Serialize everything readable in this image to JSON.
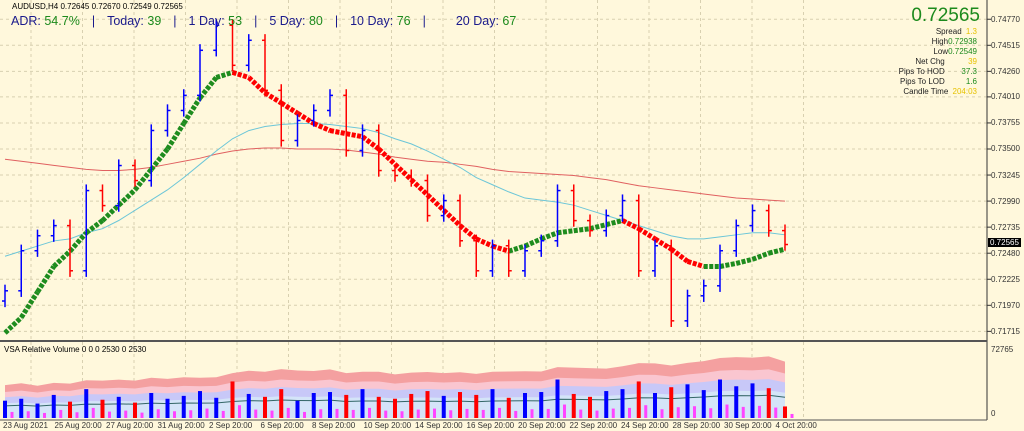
{
  "header": {
    "symbol_line": "AUDUSD,H4  0.72645 0.72670 0.72549 0.72565",
    "adr": {
      "label": "ADR:",
      "value": "54.7%"
    },
    "today": {
      "label": "Today:",
      "value": "39"
    },
    "day1": {
      "label": "1 Day:",
      "value": "53"
    },
    "day5": {
      "label": "5 Day:",
      "value": "80"
    },
    "day10": {
      "label": "10 Day:",
      "value": "76"
    },
    "day20": {
      "label": "20 Day:",
      "value": "67"
    },
    "separator": "|"
  },
  "info_panel": {
    "price": "0.72565",
    "spread_label": "Spread",
    "spread": "1.3",
    "high_label": "High",
    "high": "0.72938",
    "low_label": "Low",
    "low": "0.72549",
    "netchg_label": "Net Chg",
    "netchg": "39",
    "hod_label": "Pips To HOD",
    "hod": "37.3",
    "lod_label": "Pips To LOD",
    "lod": "1.6",
    "candle_label": "Candle Time",
    "candle": "204:03"
  },
  "colors": {
    "background": "#fff8dc",
    "bull": "#0000ff",
    "bear": "#ff0000",
    "ma_up": "#1e8c1e",
    "ma_down": "#ff0000",
    "slow_ma": "#e06060",
    "mid_ma": "#6cc6d8"
  },
  "chart_data": {
    "type": "candlestick",
    "symbol": "AUDUSD",
    "timeframe": "H4",
    "y_ticks": [
      "0.74770",
      "0.74515",
      "0.74260",
      "0.74010",
      "0.73755",
      "0.73500",
      "0.73245",
      "0.72990",
      "0.72735",
      "0.72480",
      "0.72225",
      "0.71970",
      "0.71715"
    ],
    "ylim": [
      0.7165,
      0.7488
    ],
    "current_price": "0.72565",
    "x_ticks": [
      "23 Aug 2021",
      "25 Aug 20:00",
      "27 Aug 20:00",
      "31 Aug 20:00",
      "2 Sep 20:00",
      "6 Sep 20:00",
      "8 Sep 20:00",
      "10 Sep 20:00",
      "14 Sep 20:00",
      "16 Sep 20:00",
      "20 Sep 20:00",
      "22 Sep 20:00",
      "24 Sep 20:00",
      "28 Sep 20:00",
      "30 Sep 20:00",
      "4 Oct 20:00"
    ],
    "closes": [
      0.72112,
      0.72504,
      0.72651,
      0.7275,
      0.72308,
      0.73093,
      0.72946,
      0.73338,
      0.73191,
      0.73681,
      0.73877,
      0.74025,
      0.74466,
      0.74711,
      0.74319,
      0.74564,
      0.74074,
      0.73583,
      0.73779,
      0.73877,
      0.74025,
      0.73485,
      0.73681,
      0.73289,
      0.7324,
      0.73191,
      0.72848,
      0.72995,
      0.72602,
      0.72308,
      0.72553,
      0.72308,
      0.72504,
      0.72602,
      0.73093,
      0.72799,
      0.72701,
      0.72848,
      0.72995,
      0.72308,
      0.72553,
      0.71818,
      0.72063,
      0.72161,
      0.72504,
      0.7275,
      0.72897,
      0.72701,
      0.72565
    ],
    "fast_ma": [
      0.717,
      0.7185,
      0.721,
      0.7235,
      0.725,
      0.7268,
      0.728,
      0.7295,
      0.731,
      0.733,
      0.735,
      0.7375,
      0.74,
      0.742,
      0.7425,
      0.742,
      0.7405,
      0.7395,
      0.7385,
      0.7375,
      0.7368,
      0.7365,
      0.7362,
      0.735,
      0.7335,
      0.732,
      0.7305,
      0.729,
      0.7275,
      0.7262,
      0.7255,
      0.725,
      0.7255,
      0.7262,
      0.7268,
      0.727,
      0.7272,
      0.7276,
      0.728,
      0.7272,
      0.7262,
      0.7252,
      0.724,
      0.7235,
      0.7235,
      0.7238,
      0.7242,
      0.7248,
      0.7252
    ],
    "slow_ma": [
      0.734,
      0.7338,
      0.7336,
      0.7334,
      0.7332,
      0.733,
      0.7329,
      0.7329,
      0.733,
      0.7332,
      0.7335,
      0.7338,
      0.7341,
      0.7345,
      0.7348,
      0.735,
      0.7351,
      0.7351,
      0.735,
      0.735,
      0.735,
      0.7349,
      0.7347,
      0.7345,
      0.7342,
      0.734,
      0.7338,
      0.7337,
      0.7335,
      0.7333,
      0.733,
      0.7328,
      0.7327,
      0.7326,
      0.7325,
      0.7324,
      0.7322,
      0.732,
      0.7317,
      0.7314,
      0.7312,
      0.731,
      0.7308,
      0.7306,
      0.7304,
      0.7302,
      0.7301,
      0.73,
      0.7299
    ],
    "mid_ma": [
      0.7245,
      0.725,
      0.7255,
      0.726,
      0.7262,
      0.7268,
      0.7272,
      0.728,
      0.729,
      0.73,
      0.731,
      0.7322,
      0.7335,
      0.7348,
      0.736,
      0.7368,
      0.7372,
      0.7374,
      0.7375,
      0.7375,
      0.7374,
      0.7372,
      0.737,
      0.7366,
      0.736,
      0.7355,
      0.7348,
      0.734,
      0.7332,
      0.7322,
      0.7315,
      0.7308,
      0.7302,
      0.73,
      0.7298,
      0.7295,
      0.729,
      0.7285,
      0.728,
      0.7275,
      0.727,
      0.7265,
      0.7262,
      0.7262,
      0.7264,
      0.7266,
      0.7268,
      0.7268,
      0.7266
    ]
  },
  "volume_panel": {
    "title": "VSA Relative Volume 0 0 0 2530 0 2530",
    "max_label": "72765",
    "min_label": "0",
    "volume": [
      18000,
      20000,
      15000,
      24000,
      17000,
      30000,
      19000,
      22000,
      16000,
      26000,
      20000,
      23000,
      28000,
      21000,
      38000,
      25000,
      22000,
      30000,
      18000,
      26000,
      27000,
      24000,
      30000,
      22000,
      20000,
      25000,
      28000,
      23000,
      27000,
      24000,
      30000,
      21000,
      26000,
      27000,
      40000,
      25000,
      22000,
      28000,
      30000,
      38000,
      26000,
      32000,
      35000,
      29000,
      40000,
      33000,
      36000,
      31000,
      12000
    ]
  }
}
